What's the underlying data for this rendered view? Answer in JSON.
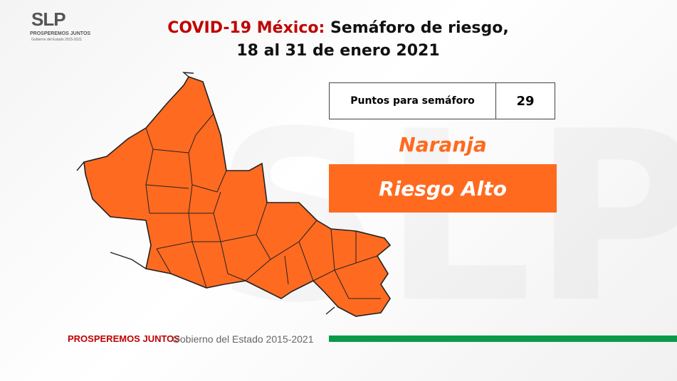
{
  "logo": {
    "mark": "SLP",
    "slogan": "PROSPEREMOS JUNTOS",
    "subtitle": "Gobierno del Estado 2015-2021"
  },
  "title": {
    "highlight": "COVID-19 México:",
    "main": "Semáforo de riesgo,",
    "period": "18 al 31 de enero 2021"
  },
  "table": {
    "label": "Puntos para semáforo",
    "value": 29
  },
  "status": {
    "color": "Naranja",
    "risk": "Riesgo Alto"
  },
  "footer": {
    "slogan": "PROSPEREMOS JUNTOS",
    "government": "Gobierno del Estado 2015-2021"
  }
}
